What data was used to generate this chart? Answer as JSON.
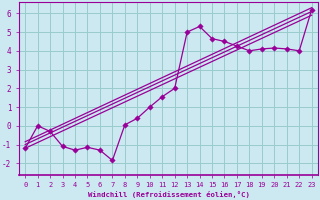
{
  "xlabel": "Windchill (Refroidissement éolien,°C)",
  "bg_color": "#cce8f0",
  "line_color": "#990099",
  "grid_color": "#99cccc",
  "xlim": [
    -0.5,
    23.5
  ],
  "ylim": [
    -2.6,
    6.6
  ],
  "yticks": [
    -2,
    -1,
    0,
    1,
    2,
    3,
    4,
    5,
    6
  ],
  "xticks": [
    0,
    1,
    2,
    3,
    4,
    5,
    6,
    7,
    8,
    9,
    10,
    11,
    12,
    13,
    14,
    15,
    16,
    17,
    18,
    19,
    20,
    21,
    22,
    23
  ],
  "data_x": [
    0,
    1,
    2,
    3,
    4,
    5,
    6,
    7,
    8,
    9,
    10,
    11,
    12,
    13,
    14,
    15,
    16,
    17,
    18,
    19,
    20,
    21,
    22,
    23
  ],
  "data_y": [
    -1.2,
    0.0,
    -0.3,
    -1.1,
    -1.3,
    -1.15,
    -1.3,
    -1.85,
    0.05,
    0.4,
    1.0,
    1.55,
    2.0,
    5.0,
    5.3,
    4.65,
    4.5,
    4.25,
    4.0,
    4.1,
    4.15,
    4.1,
    4.0,
    6.2
  ],
  "line2_x": [
    0,
    23
  ],
  "line2_y": [
    -1.0,
    6.1
  ],
  "line3_x": [
    0,
    23
  ],
  "line3_y": [
    -1.2,
    5.9
  ],
  "line4_x": [
    0,
    23
  ],
  "line4_y": [
    -0.85,
    6.3
  ]
}
